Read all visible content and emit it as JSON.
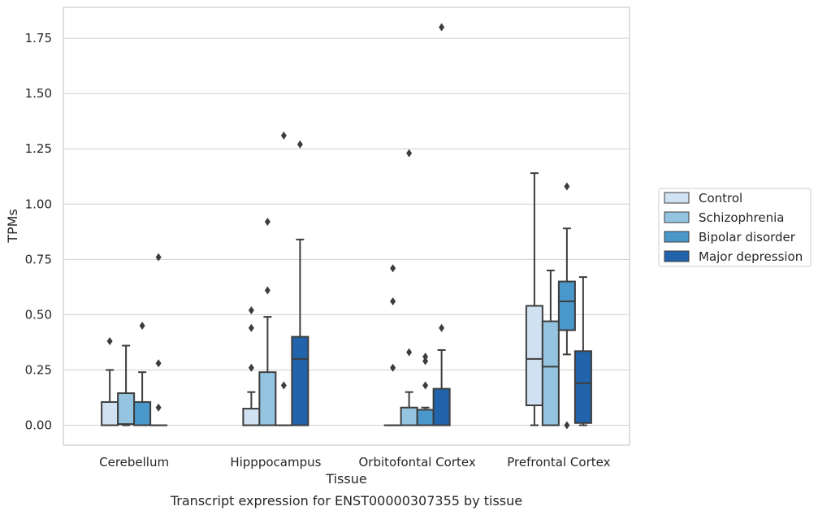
{
  "chart_data": {
    "type": "box",
    "title": "",
    "caption": "Transcript expression for ENST00000307355 by tissue",
    "xlabel": "Tissue",
    "ylabel": "TPMs",
    "ylim": [
      -0.09,
      1.89
    ],
    "yticks": [
      "0.00",
      "0.25",
      "0.50",
      "0.75",
      "1.00",
      "1.25",
      "1.50",
      "1.75"
    ],
    "ytick_values": [
      0,
      0.25,
      0.5,
      0.75,
      1.0,
      1.25,
      1.5,
      1.75
    ],
    "grid": "horizontal",
    "legend_position": "right",
    "categories": [
      "Cerebellum",
      "Hipppocampus",
      "Orbitofontal Cortex",
      "Prefrontal Cortex"
    ],
    "series": [
      {
        "name": "Control",
        "color": "#d0e1f2",
        "boxes": [
          {
            "min": 0,
            "q1": 0,
            "median": 0,
            "q3": 0.105,
            "max": 0.25,
            "outliers": [
              0.38
            ]
          },
          {
            "min": 0,
            "q1": 0,
            "median": 0,
            "q3": 0.075,
            "max": 0.15,
            "outliers": [
              0.26,
              0.44,
              0.52
            ]
          },
          {
            "min": 0,
            "q1": 0,
            "median": 0,
            "q3": 0,
            "max": 0,
            "outliers": [
              0.26,
              0.56,
              0.71
            ]
          },
          {
            "min": 0,
            "q1": 0.09,
            "median": 0.3,
            "q3": 0.54,
            "max": 1.14,
            "outliers": []
          }
        ]
      },
      {
        "name": "Schizophrenia",
        "color": "#94c4df",
        "boxes": [
          {
            "min": 0,
            "q1": 0.005,
            "median": 0.005,
            "q3": 0.145,
            "max": 0.36,
            "outliers": []
          },
          {
            "min": 0,
            "q1": 0,
            "median": 0,
            "q3": 0.24,
            "max": 0.49,
            "outliers": [
              0.61,
              0.92
            ]
          },
          {
            "min": 0,
            "q1": 0,
            "median": 0,
            "q3": 0.08,
            "max": 0.15,
            "outliers": [
              0.33,
              1.23
            ]
          },
          {
            "min": 0,
            "q1": 0,
            "median": 0.265,
            "q3": 0.47,
            "max": 0.7,
            "outliers": []
          }
        ]
      },
      {
        "name": "Bipolar disorder",
        "color": "#4a98c9",
        "boxes": [
          {
            "min": 0,
            "q1": 0,
            "median": 0,
            "q3": 0.105,
            "max": 0.24,
            "outliers": [
              0.45
            ]
          },
          {
            "min": 0,
            "q1": 0,
            "median": 0,
            "q3": 0,
            "max": 0,
            "outliers": [
              0.18,
              1.31
            ]
          },
          {
            "min": 0,
            "q1": 0,
            "median": 0,
            "q3": 0.07,
            "max": 0.08,
            "outliers": [
              0.18,
              0.29,
              0.31
            ]
          },
          {
            "min": 0.32,
            "q1": 0.43,
            "median": 0.56,
            "q3": 0.65,
            "max": 0.89,
            "outliers": [
              0.0,
              1.08
            ]
          }
        ]
      },
      {
        "name": "Major depression",
        "color": "#2164ab",
        "boxes": [
          {
            "min": 0,
            "q1": 0,
            "median": 0,
            "q3": 0,
            "max": 0,
            "outliers": [
              0.08,
              0.28,
              0.76
            ]
          },
          {
            "min": 0,
            "q1": 0,
            "median": 0.3,
            "q3": 0.4,
            "max": 0.84,
            "outliers": [
              1.27
            ]
          },
          {
            "min": 0,
            "q1": 0,
            "median": 0,
            "q3": 0.165,
            "max": 0.34,
            "outliers": [
              0.44,
              1.8
            ]
          },
          {
            "min": 0,
            "q1": 0.01,
            "median": 0.19,
            "q3": 0.335,
            "max": 0.67,
            "outliers": []
          }
        ]
      }
    ]
  }
}
